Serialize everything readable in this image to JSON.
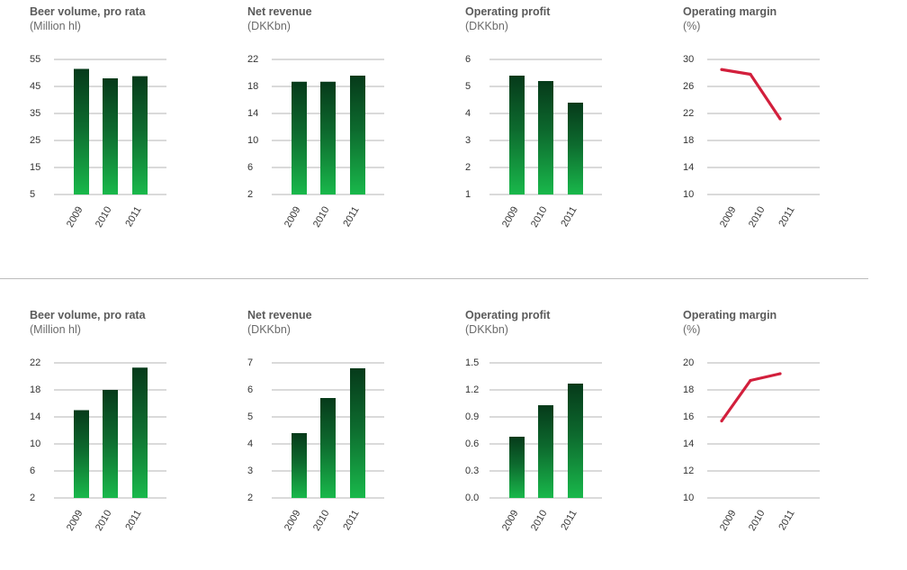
{
  "colors": {
    "bar_top": "#063a1a",
    "bar_bottom": "#19b84b",
    "line": "#d21f3c",
    "grid": "#b5b5b5",
    "title": "#5a5a5a",
    "subtitle": "#6a6a6a",
    "tick": "#333333"
  },
  "chart_data": [
    {
      "type": "bar",
      "row": "top",
      "title": "Beer volume, pro rata",
      "subtitle": "(Million hl)",
      "categories": [
        "2009",
        "2010",
        "2011"
      ],
      "values": [
        51.5,
        48,
        48.8
      ],
      "yticks": [
        "5",
        "15",
        "25",
        "35",
        "45",
        "55"
      ],
      "ylim": [
        5,
        55
      ]
    },
    {
      "type": "bar",
      "row": "top",
      "title": "Net revenue",
      "subtitle": "(DKKbn)",
      "categories": [
        "2009",
        "2010",
        "2011"
      ],
      "values": [
        18.7,
        18.7,
        19.6
      ],
      "yticks": [
        "2",
        "6",
        "10",
        "14",
        "18",
        "22"
      ],
      "ylim": [
        2,
        22
      ]
    },
    {
      "type": "bar",
      "row": "top",
      "title": "Operating profit",
      "subtitle": "(DKKbn)",
      "categories": [
        "2009",
        "2010",
        "2011"
      ],
      "values": [
        5.4,
        5.2,
        4.4
      ],
      "yticks": [
        "1",
        "2",
        "3",
        "4",
        "5",
        "6"
      ],
      "ylim": [
        1,
        6
      ]
    },
    {
      "type": "line",
      "row": "top",
      "title": "Operating margin",
      "subtitle": "(%)",
      "categories": [
        "2009",
        "2010",
        "2011"
      ],
      "values": [
        28.5,
        27.8,
        21.2
      ],
      "yticks": [
        "10",
        "14",
        "18",
        "22",
        "26",
        "30"
      ],
      "ylim": [
        10,
        30
      ]
    },
    {
      "type": "bar",
      "row": "bottom",
      "title": "Beer volume, pro rata",
      "subtitle": "(Million hl)",
      "categories": [
        "2009",
        "2010",
        "2011"
      ],
      "values": [
        15,
        18,
        21.3
      ],
      "yticks": [
        "2",
        "6",
        "10",
        "14",
        "18",
        "22"
      ],
      "ylim": [
        2,
        22
      ]
    },
    {
      "type": "bar",
      "row": "bottom",
      "title": "Net revenue",
      "subtitle": "(DKKbn)",
      "categories": [
        "2009",
        "2010",
        "2011"
      ],
      "values": [
        4.4,
        5.7,
        6.8
      ],
      "yticks": [
        "2",
        "3",
        "4",
        "5",
        "6",
        "7"
      ],
      "ylim": [
        2,
        7
      ]
    },
    {
      "type": "bar",
      "row": "bottom",
      "title": "Operating profit",
      "subtitle": "(DKKbn)",
      "categories": [
        "2009",
        "2010",
        "2011"
      ],
      "values": [
        0.68,
        1.03,
        1.27
      ],
      "yticks": [
        "0.0",
        "0.3",
        "0.6",
        "0.9",
        "1.2",
        "1.5"
      ],
      "ylim": [
        0,
        1.5
      ]
    },
    {
      "type": "line",
      "row": "bottom",
      "title": "Operating margin",
      "subtitle": "(%)",
      "categories": [
        "2009",
        "2010",
        "2011"
      ],
      "values": [
        15.7,
        18.7,
        19.2
      ],
      "yticks": [
        "10",
        "12",
        "14",
        "16",
        "18",
        "20"
      ],
      "ylim": [
        10,
        20
      ]
    }
  ]
}
